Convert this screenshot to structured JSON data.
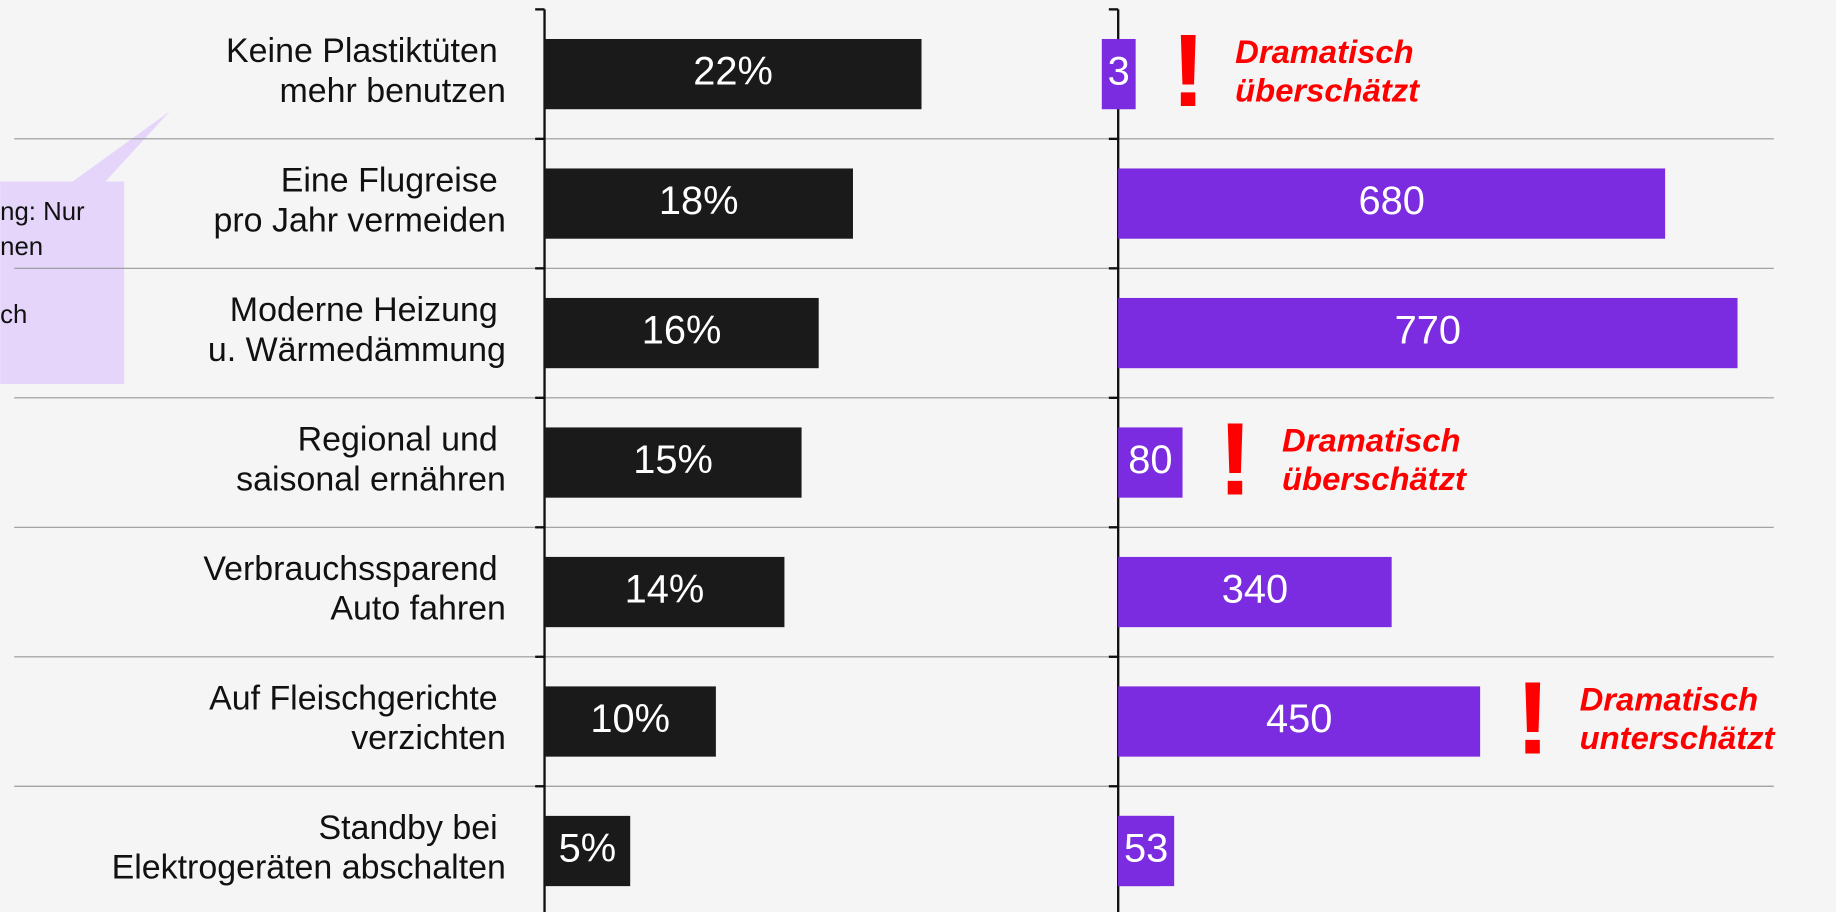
{
  "chart_data": [
    {
      "type": "bar",
      "categories": [
        [
          "Keine Plastiktüten",
          "mehr benutzen"
        ],
        [
          "Eine Flugreise",
          "pro Jahr vermeiden"
        ],
        [
          "Moderne Heizung",
          "u. Wärmedämmung"
        ],
        [
          "Regional und",
          "saisonal ernähren"
        ],
        [
          "Verbrauchssparend",
          "Auto fahren"
        ],
        [
          "Auf Fleischgerichte",
          "verzichten"
        ],
        [
          "Standby bei",
          "Elektrogeräten abschalten"
        ]
      ],
      "values": [
        22,
        18,
        16,
        15,
        14,
        10,
        5
      ],
      "value_labels": [
        "22%",
        "18%",
        "16%",
        "15%",
        "14%",
        "10%",
        "5%"
      ],
      "color": "#1a1a1a",
      "callout": [
        "ng: Nur",
        "nen",
        "ch"
      ]
    },
    {
      "type": "bar",
      "values": [
        3,
        680,
        770,
        80,
        340,
        450,
        53
      ],
      "color": "#7b2be0",
      "annotations": [
        {
          "mark": "!",
          "lines": [
            "Dramatisch",
            "überschätzt"
          ]
        },
        null,
        null,
        {
          "mark": "!",
          "lines": [
            "Dramatisch",
            "überschätzt"
          ]
        },
        null,
        {
          "mark": "!",
          "lines": [
            "Dramatisch",
            "unterschätzt"
          ]
        },
        null
      ]
    }
  ]
}
